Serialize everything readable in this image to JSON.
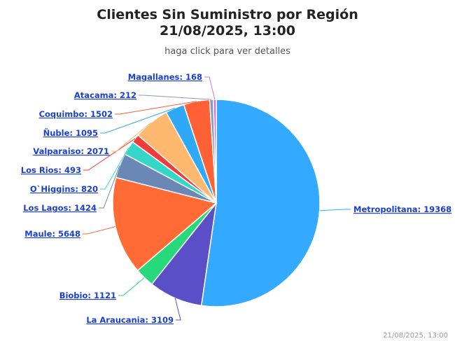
{
  "chart_data": {
    "type": "pie",
    "title": "Clientes Sin Suministro por Región",
    "title_line2": "21/08/2025, 13:00",
    "subtitle": "haga click para ver detalles",
    "credit": "21/08/2025, 13:00",
    "series": [
      {
        "name": "Metropolitana",
        "value": 19368,
        "label": "Metropolitana: 19368",
        "color": "#33aaff"
      },
      {
        "name": "La Araucania",
        "value": 3109,
        "label": "La Araucania: 3109",
        "color": "#5a4fc6"
      },
      {
        "name": "Biobio",
        "value": 1121,
        "label": "Biobio: 1121",
        "color": "#27d97a"
      },
      {
        "name": "Maule",
        "value": 5648,
        "label": "Maule: 5648",
        "color": "#ff6a35"
      },
      {
        "name": "Los Lagos",
        "value": 1424,
        "label": "Los Lagos: 1424",
        "color": "#6b87b5"
      },
      {
        "name": "O`Higgins",
        "value": 820,
        "label": "O`Higgins: 820",
        "color": "#33d6c7"
      },
      {
        "name": "Los Rios",
        "value": 493,
        "label": "Los Rios: 493",
        "color": "#f23a3a"
      },
      {
        "name": "Valparaiso",
        "value": 2071,
        "label": "Valparaiso: 2071",
        "color": "#ffb870"
      },
      {
        "name": "Ñuble",
        "value": 1095,
        "label": "Ñuble: 1095",
        "color": "#2fa9f5"
      },
      {
        "name": "Coquimbo",
        "value": 1502,
        "label": "Coquimbo: 1502",
        "color": "#ff6035"
      },
      {
        "name": "Atacama",
        "value": 212,
        "label": "Atacama: 212",
        "color": "#8a99bd"
      },
      {
        "name": "Magallanes",
        "value": 168,
        "label": "Magallanes: 168",
        "color": "#c873e6"
      }
    ]
  }
}
